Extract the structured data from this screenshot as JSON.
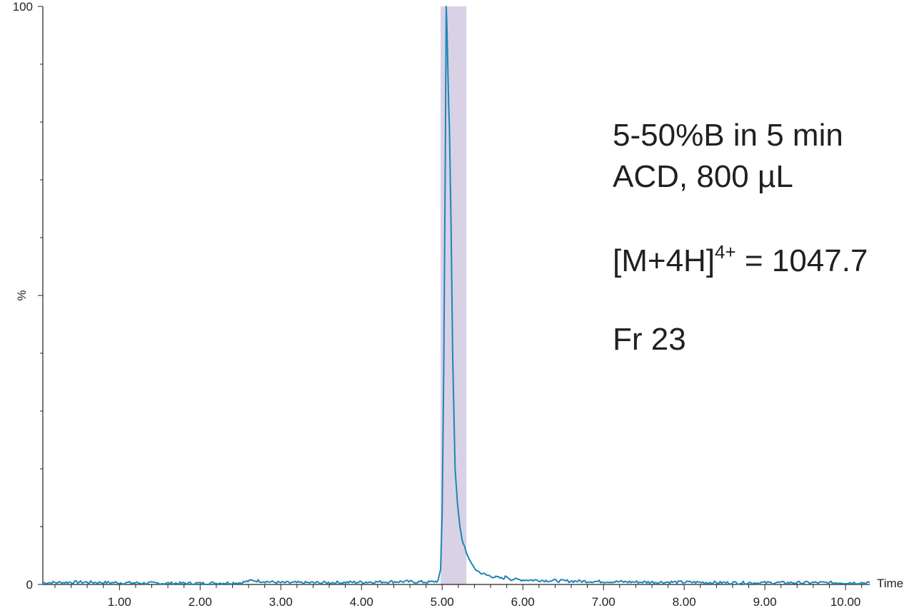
{
  "chart_data": {
    "type": "line",
    "title": "",
    "xlabel": "Time",
    "ylabel": "%",
    "xlim": [
      0.05,
      10.3
    ],
    "ylim": [
      0,
      100
    ],
    "x_ticks": [
      "1.00",
      "2.00",
      "3.00",
      "4.00",
      "5.00",
      "6.00",
      "7.00",
      "8.00",
      "9.00",
      "10.00"
    ],
    "x_tick_values": [
      1,
      2,
      3,
      4,
      5,
      6,
      7,
      8,
      9,
      10
    ],
    "y_ticks": [
      "0",
      "100"
    ],
    "y_tick_values": [
      0,
      100
    ],
    "y_minor_step": 10,
    "x_minor_step": 0.2,
    "series": [
      {
        "color": "#1b87b5",
        "points": [
          [
            0.05,
            0.3
          ],
          [
            0.5,
            0.4
          ],
          [
            1.0,
            0.3
          ],
          [
            1.5,
            0.2
          ],
          [
            2.0,
            0.2
          ],
          [
            2.5,
            0.3
          ],
          [
            2.65,
            0.7
          ],
          [
            3.0,
            0.3
          ],
          [
            3.5,
            0.3
          ],
          [
            4.0,
            0.4
          ],
          [
            4.5,
            0.5
          ],
          [
            4.85,
            0.4
          ],
          [
            4.95,
            0.6
          ],
          [
            4.98,
            2.5
          ],
          [
            5.0,
            12
          ],
          [
            5.02,
            38
          ],
          [
            5.04,
            75
          ],
          [
            5.05,
            100
          ],
          [
            5.06,
            96
          ],
          [
            5.08,
            83
          ],
          [
            5.09,
            79
          ],
          [
            5.11,
            62
          ],
          [
            5.13,
            40
          ],
          [
            5.16,
            20
          ],
          [
            5.19,
            14
          ],
          [
            5.22,
            10
          ],
          [
            5.25,
            7.5
          ],
          [
            5.28,
            6.5
          ],
          [
            5.3,
            5.5
          ],
          [
            5.33,
            4.5
          ],
          [
            5.37,
            3.5
          ],
          [
            5.42,
            2.5
          ],
          [
            5.48,
            2.0
          ],
          [
            5.55,
            1.6
          ],
          [
            5.65,
            1.3
          ],
          [
            5.75,
            1.0
          ],
          [
            5.8,
            1.4
          ],
          [
            5.85,
            0.9
          ],
          [
            6.0,
            0.8
          ],
          [
            6.5,
            0.6
          ],
          [
            7.0,
            0.5
          ],
          [
            7.5,
            0.4
          ],
          [
            8.0,
            0.4
          ],
          [
            8.5,
            0.3
          ],
          [
            9.0,
            0.3
          ],
          [
            9.5,
            0.3
          ],
          [
            10.0,
            0.3
          ],
          [
            10.3,
            0.3
          ]
        ]
      }
    ],
    "highlight_region": {
      "x_start": 4.98,
      "x_end": 5.3,
      "color": "#d9d1e6"
    }
  },
  "annotations": {
    "line1": "5-50%B in 5 min",
    "line2": "ACD, 800 µL",
    "line3_main": "[M+4H]",
    "line3_sup": "4+",
    "line3_rest": " = 1047.7",
    "line4": "Fr 23"
  }
}
